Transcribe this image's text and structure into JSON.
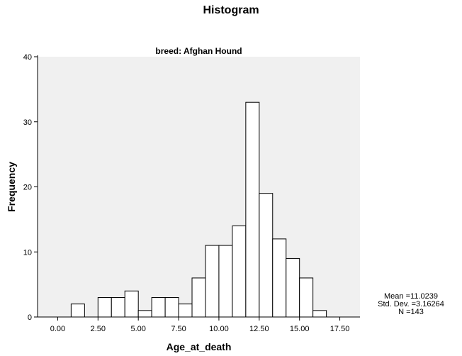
{
  "title": "Histogram",
  "chart_data": {
    "type": "bar",
    "title": "Histogram",
    "subtitle": "breed: Afghan Hound",
    "xlabel": "Age_at_death",
    "ylabel": "Frequency",
    "xlim": [
      -1.25,
      18.75
    ],
    "ylim": [
      0,
      40
    ],
    "bin_width": 0.833,
    "x_ticks": [
      "0.00",
      "2.50",
      "5.00",
      "7.50",
      "10.00",
      "12.50",
      "15.00",
      "17.50"
    ],
    "x_tick_values": [
      0,
      2.5,
      5,
      7.5,
      10,
      12.5,
      15,
      17.5
    ],
    "y_ticks": [
      "0",
      "10",
      "20",
      "30",
      "40"
    ],
    "y_tick_values": [
      0,
      10,
      20,
      30,
      40
    ],
    "bins": [
      {
        "start": 0.833,
        "end": 1.667,
        "value": 2
      },
      {
        "start": 1.667,
        "end": 2.5,
        "value": 0
      },
      {
        "start": 2.5,
        "end": 3.333,
        "value": 3
      },
      {
        "start": 3.333,
        "end": 4.167,
        "value": 3
      },
      {
        "start": 4.167,
        "end": 5.0,
        "value": 4
      },
      {
        "start": 5.0,
        "end": 5.833,
        "value": 1
      },
      {
        "start": 5.833,
        "end": 6.667,
        "value": 3
      },
      {
        "start": 6.667,
        "end": 7.5,
        "value": 3
      },
      {
        "start": 7.5,
        "end": 8.333,
        "value": 2
      },
      {
        "start": 8.333,
        "end": 9.167,
        "value": 6
      },
      {
        "start": 9.167,
        "end": 10.0,
        "value": 11
      },
      {
        "start": 10.0,
        "end": 10.833,
        "value": 11
      },
      {
        "start": 10.833,
        "end": 11.667,
        "value": 14
      },
      {
        "start": 11.667,
        "end": 12.5,
        "value": 33
      },
      {
        "start": 12.5,
        "end": 13.333,
        "value": 19
      },
      {
        "start": 13.333,
        "end": 14.167,
        "value": 12
      },
      {
        "start": 14.167,
        "end": 15.0,
        "value": 9
      },
      {
        "start": 15.0,
        "end": 15.833,
        "value": 6
      },
      {
        "start": 15.833,
        "end": 16.667,
        "value": 1
      }
    ],
    "grid": false,
    "colors": {
      "plot_background": "#f0f0f0",
      "bar_fill": "#ffffff",
      "bar_stroke": "#000000"
    }
  },
  "stats": {
    "mean": "Mean =11.0239",
    "std_dev": "Std. Dev. =3.16264",
    "n": "N =143"
  }
}
